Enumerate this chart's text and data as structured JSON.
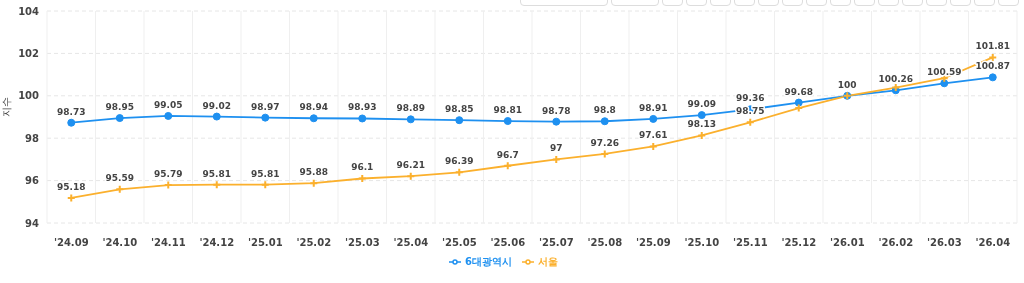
{
  "chart_data": {
    "type": "line",
    "ylabel": "지수",
    "categories": [
      "'24.09",
      "'24.10",
      "'24.11",
      "'24.12",
      "'25.01",
      "'25.02",
      "'25.03",
      "'25.04",
      "'25.05",
      "'25.06",
      "'25.07",
      "'25.08",
      "'25.09",
      "'25.10",
      "'25.11",
      "'25.12",
      "'26.01",
      "'26.02",
      "'26.03",
      "'26.04"
    ],
    "series": [
      {
        "name": "6대광역시",
        "color": "#1e90f0",
        "marker": "circle",
        "values": [
          98.73,
          98.95,
          99.05,
          99.02,
          98.97,
          98.94,
          98.93,
          98.89,
          98.85,
          98.81,
          98.78,
          98.8,
          98.91,
          99.09,
          99.36,
          99.68,
          100,
          100.26,
          100.59,
          100.87
        ],
        "value_labels": [
          "98.73",
          "98.95",
          "99.05",
          "99.02",
          "98.97",
          "98.94",
          "98.93",
          "98.89",
          "98.85",
          "98.81",
          "98.78",
          "98.8",
          "98.91",
          "99.09",
          "99.36",
          "99.68",
          "100",
          "100.26",
          "100.59",
          "100.87"
        ]
      },
      {
        "name": "서울",
        "color": "#fbb02d",
        "marker": "cross",
        "values": [
          95.18,
          95.59,
          95.79,
          95.81,
          95.81,
          95.88,
          96.1,
          96.21,
          96.39,
          96.7,
          97,
          97.26,
          97.61,
          98.13,
          98.75,
          99.42,
          100,
          100.39,
          100.83,
          101.81
        ],
        "value_labels": [
          "95.18",
          "95.59",
          "95.79",
          "95.81",
          "95.81",
          "95.88",
          "96.1",
          "96.21",
          "96.39",
          "96.7",
          "97",
          "97.26",
          "97.61",
          "98.13",
          "98.75",
          null,
          null,
          null,
          null,
          "101.81"
        ]
      }
    ],
    "ylim": [
      94,
      104
    ],
    "yticks": [
      94,
      96,
      98,
      100,
      102,
      104
    ],
    "grid": true,
    "legend": "bottom",
    "line_style": "solid"
  }
}
